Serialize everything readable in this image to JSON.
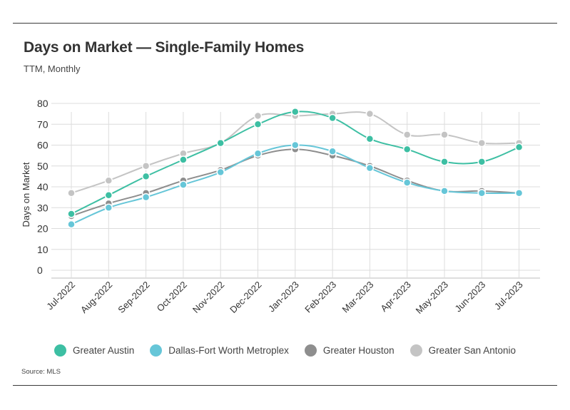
{
  "header": {
    "title": "Days on Market — Single-Family Homes",
    "subtitle": "TTM, Monthly"
  },
  "footer": {
    "source": "Source:  MLS"
  },
  "chart_data": {
    "type": "line",
    "title": "Days on Market — Single-Family Homes",
    "subtitle": "TTM, Monthly",
    "xlabel": "",
    "ylabel": "Days on Market",
    "ylim": [
      0,
      80
    ],
    "yticks": [
      0,
      10,
      20,
      30,
      40,
      50,
      60,
      70,
      80
    ],
    "grid": true,
    "legend_position": "bottom",
    "categories": [
      "Jul-2022",
      "Aug-2022",
      "Sep-2022",
      "Oct-2022",
      "Nov-2022",
      "Dec-2022",
      "Jan-2023",
      "Feb-2023",
      "Mar-2023",
      "Apr-2023",
      "May-2023",
      "Jun-2023",
      "Jul-2023"
    ],
    "series": [
      {
        "name": "Greater Austin",
        "color": "#3dbfa3",
        "values": [
          27,
          36,
          45,
          53,
          61,
          70,
          76,
          73,
          63,
          58,
          52,
          52,
          59
        ]
      },
      {
        "name": "Dallas-Fort Worth Metroplex",
        "color": "#66c6d8",
        "values": [
          22,
          30,
          35,
          41,
          47,
          56,
          60,
          57,
          49,
          42,
          38,
          37,
          37
        ]
      },
      {
        "name": "Greater Houston",
        "color": "#8e8e8e",
        "values": [
          26,
          32,
          37,
          43,
          48,
          55,
          58,
          55,
          50,
          43,
          38,
          38,
          37
        ]
      },
      {
        "name": "Greater San Antonio",
        "color": "#c4c4c4",
        "values": [
          37,
          43,
          50,
          56,
          61,
          74,
          74,
          75,
          75,
          65,
          65,
          61,
          61
        ]
      }
    ]
  }
}
